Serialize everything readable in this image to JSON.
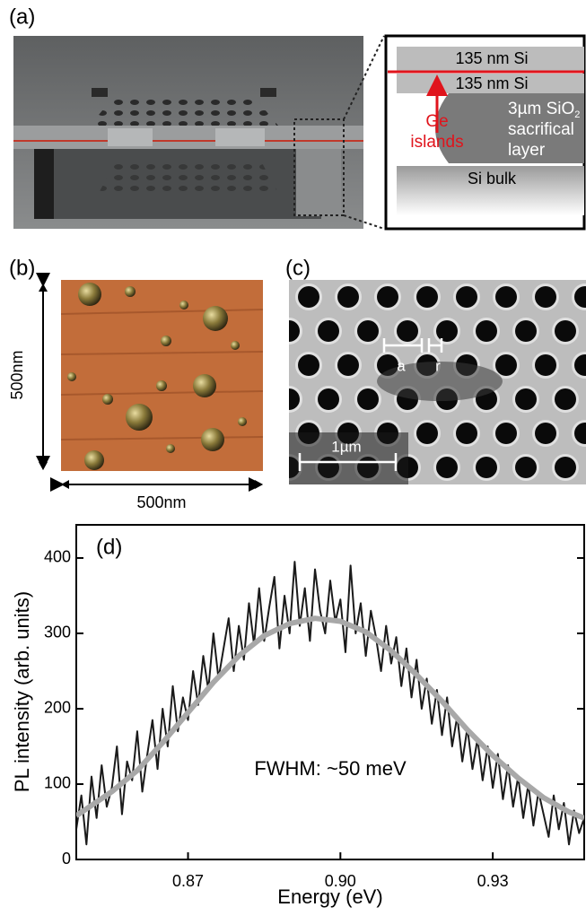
{
  "panels": {
    "a": {
      "label": "(a)",
      "inset": {
        "top_layer": "135 nm Si",
        "middle_layer": "135 nm Si",
        "oxide_line1": "3µm SiO",
        "oxide_subscript": "2",
        "oxide_line2": "sacrifical",
        "oxide_line3": "layer",
        "ge_line1": "Ge",
        "ge_line2": "islands",
        "bulk": "Si bulk"
      }
    },
    "b": {
      "label": "(b)",
      "height_label": "500nm",
      "width_label": "500nm"
    },
    "c": {
      "label": "(c)",
      "lattice_label": "a",
      "radius_label": "r",
      "scale_bar": "1µm"
    }
  },
  "chart_data": {
    "type": "line",
    "panel_label": "(d)",
    "annotation": "FWHM: ~50 meV",
    "xlabel": "Energy (eV)",
    "ylabel": "PL intensity (arb. units)",
    "xlim": [
      0.848,
      0.948
    ],
    "ylim": [
      0,
      444
    ],
    "xticks": [
      0.87,
      {
        "value": 0.9,
        "label": "0.90"
      },
      0.93
    ],
    "yticks": [
      0,
      100,
      200,
      300,
      400
    ],
    "series": [
      {
        "color": "#1a1a1a",
        "x": [
          0.848,
          0.849,
          0.85,
          0.851,
          0.852,
          0.853,
          0.854,
          0.855,
          0.856,
          0.857,
          0.858,
          0.859,
          0.86,
          0.861,
          0.862,
          0.863,
          0.864,
          0.865,
          0.866,
          0.867,
          0.868,
          0.869,
          0.87,
          0.871,
          0.872,
          0.873,
          0.874,
          0.875,
          0.876,
          0.877,
          0.878,
          0.879,
          0.88,
          0.881,
          0.882,
          0.883,
          0.884,
          0.885,
          0.886,
          0.887,
          0.888,
          0.889,
          0.89,
          0.891,
          0.892,
          0.893,
          0.894,
          0.895,
          0.896,
          0.897,
          0.898,
          0.899,
          0.9,
          0.901,
          0.902,
          0.903,
          0.904,
          0.905,
          0.906,
          0.907,
          0.908,
          0.909,
          0.91,
          0.911,
          0.912,
          0.913,
          0.914,
          0.915,
          0.916,
          0.917,
          0.918,
          0.919,
          0.92,
          0.921,
          0.922,
          0.923,
          0.924,
          0.925,
          0.926,
          0.927,
          0.928,
          0.929,
          0.93,
          0.931,
          0.932,
          0.933,
          0.934,
          0.935,
          0.936,
          0.937,
          0.938,
          0.939,
          0.94,
          0.941,
          0.942,
          0.943,
          0.944,
          0.945,
          0.946,
          0.947,
          0.948
        ],
        "values": [
          40,
          85,
          20,
          110,
          55,
          125,
          70,
          95,
          150,
          60,
          130,
          105,
          170,
          90,
          140,
          185,
          120,
          200,
          150,
          230,
          170,
          215,
          185,
          250,
          205,
          270,
          225,
          300,
          240,
          280,
          320,
          250,
          310,
          265,
          340,
          285,
          360,
          290,
          335,
          375,
          280,
          350,
          300,
          395,
          310,
          360,
          290,
          385,
          330,
          300,
          370,
          315,
          345,
          275,
          390,
          300,
          340,
          270,
          330,
          295,
          250,
          310,
          260,
          295,
          230,
          280,
          215,
          265,
          200,
          240,
          180,
          225,
          165,
          215,
          150,
          190,
          130,
          175,
          120,
          160,
          105,
          150,
          95,
          140,
          80,
          125,
          70,
          110,
          55,
          100,
          45,
          90,
          60,
          30,
          85,
          40,
          75,
          20,
          65,
          35,
          55
        ]
      },
      {
        "color": "#a8a8a8",
        "x": [
          0.848,
          0.855,
          0.86,
          0.865,
          0.87,
          0.875,
          0.88,
          0.885,
          0.89,
          0.895,
          0.9,
          0.905,
          0.91,
          0.915,
          0.92,
          0.925,
          0.93,
          0.935,
          0.94,
          0.945,
          0.948
        ],
        "values": [
          58,
          90,
          118,
          155,
          195,
          235,
          270,
          297,
          313,
          320,
          316,
          302,
          277,
          245,
          210,
          172,
          138,
          108,
          82,
          63,
          55
        ]
      }
    ]
  }
}
